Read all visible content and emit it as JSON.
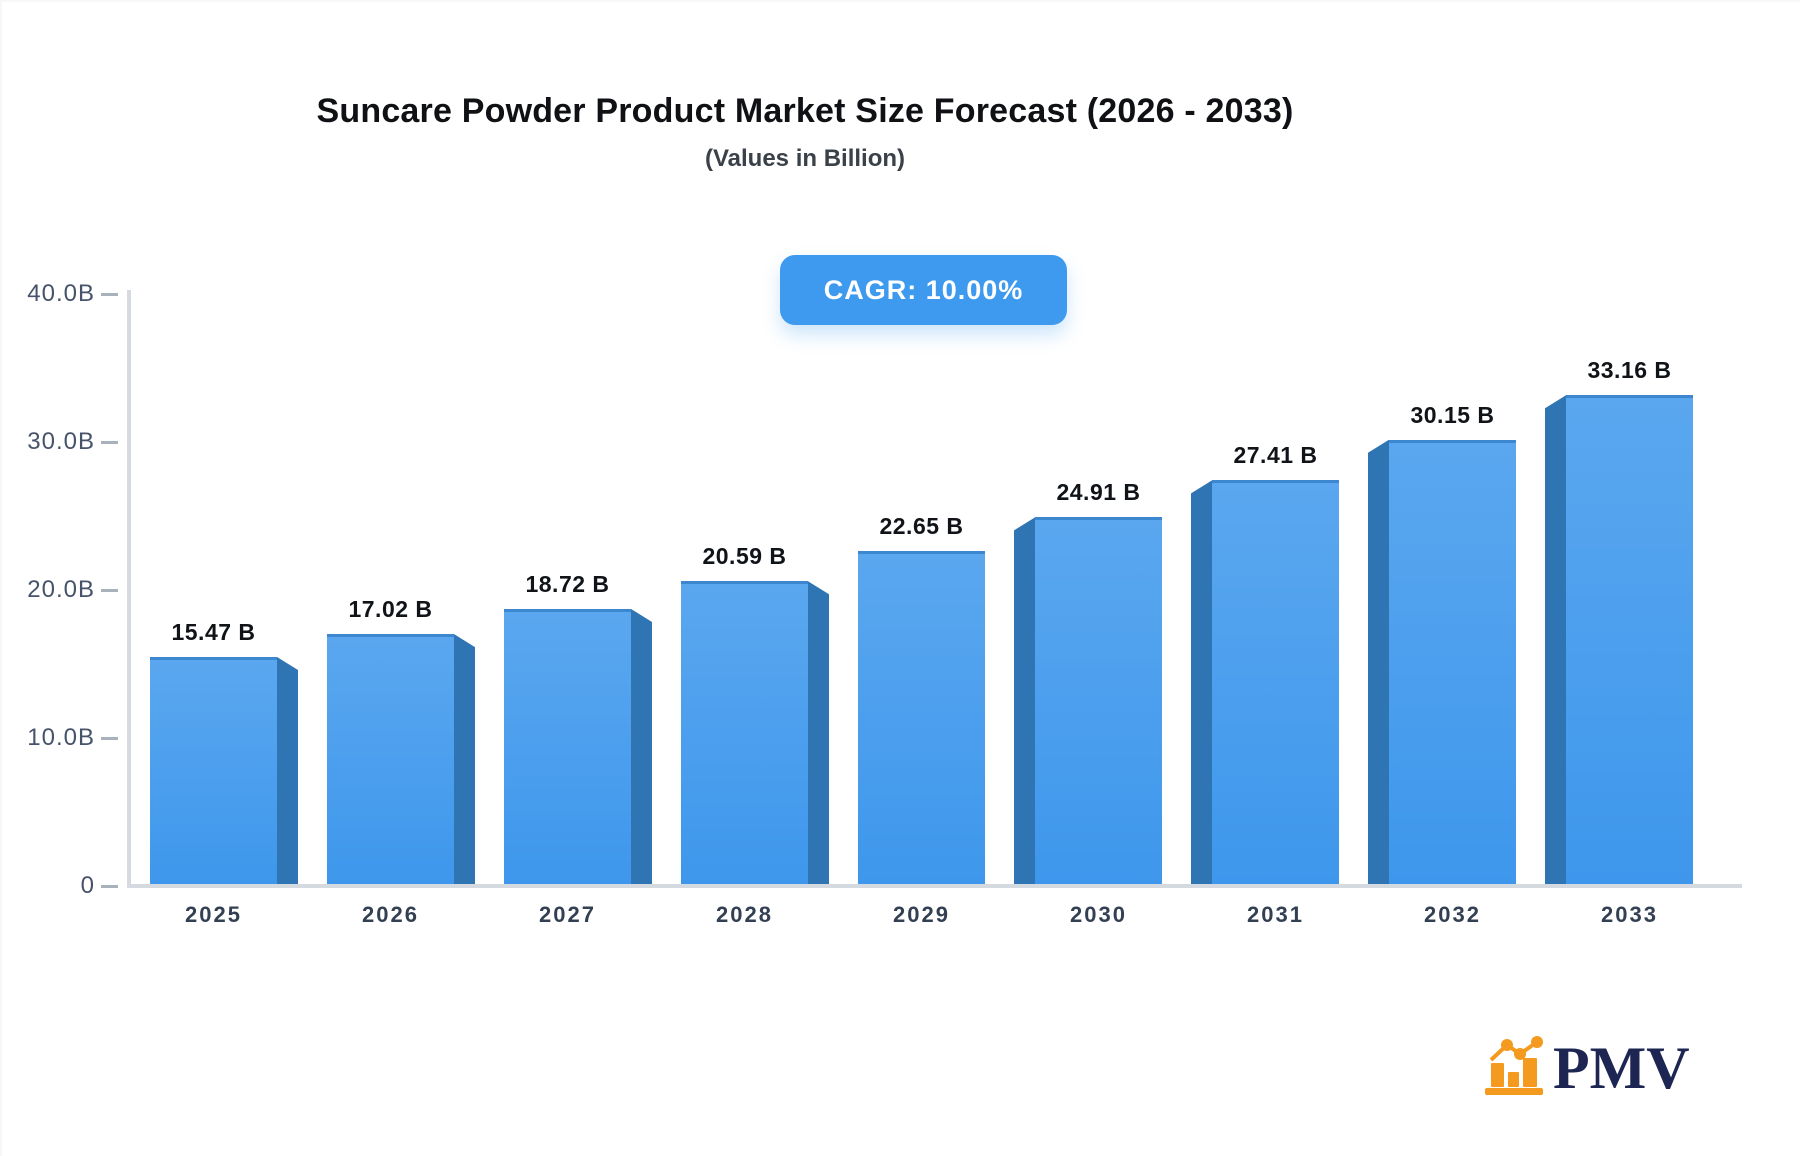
{
  "title": "Suncare Powder Product Market Size Forecast (2026 - 2033)",
  "subtitle": "(Values in Billion)",
  "cagr_badge": "CAGR: 10.00%",
  "logo": {
    "text": "PMV"
  },
  "colors": {
    "badge_bg": "#3d9aef",
    "bar_face_top": "#5aa7ef",
    "bar_face_bottom": "#3e97ec",
    "bar_side": "#2f75b3",
    "bar_edge": "#3c87cf",
    "axis_line": "#d5d9e0",
    "tick": "#a9b1bc",
    "logo_orange": "#f49a1f",
    "logo_navy": "#1d2553"
  },
  "chart_data": {
    "type": "bar",
    "categories": [
      "2025",
      "2026",
      "2027",
      "2028",
      "2029",
      "2030",
      "2031",
      "2032",
      "2033"
    ],
    "values": [
      15.47,
      17.02,
      18.72,
      20.59,
      22.65,
      24.91,
      27.41,
      30.15,
      33.16
    ],
    "bar_labels": [
      "15.47 B",
      "17.02 B",
      "18.72 B",
      "20.59 B",
      "22.65 B",
      "24.91 B",
      "27.41 B",
      "30.15 B",
      "33.16 B"
    ],
    "y_ticks": [
      {
        "label": "40.0B",
        "value": 40
      },
      {
        "label": "30.0B",
        "value": 30
      },
      {
        "label": "20.0B",
        "value": 20
      },
      {
        "label": "10.0B",
        "value": 10
      },
      {
        "label": "0",
        "value": 0
      }
    ],
    "ylim": [
      0,
      40
    ],
    "title": "Suncare Powder Product Market Size Forecast (2026 - 2033)",
    "xlabel": "",
    "ylabel": "",
    "grid": false,
    "legend": "none",
    "annotation": "CAGR: 10.00%"
  }
}
